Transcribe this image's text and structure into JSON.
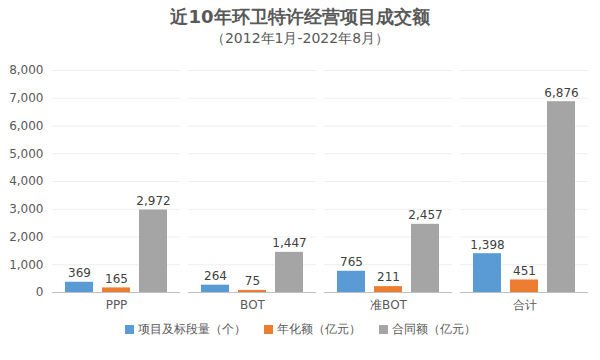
{
  "chart_data": {
    "type": "bar",
    "title": "近10年环卫特许经营项目成交额",
    "subtitle": "（2012年1月-2022年8月）",
    "categories": [
      "PPP",
      "BOT",
      "准BOT",
      "合计"
    ],
    "series": [
      {
        "name": "项目及标段量（个）",
        "color": "#5B9BD5",
        "values": [
          369,
          264,
          765,
          1398
        ],
        "value_labels": [
          "369",
          "264",
          "765",
          "1,398"
        ]
      },
      {
        "name": "年化额（亿元）",
        "color": "#ED7D31",
        "values": [
          165,
          75,
          211,
          451
        ],
        "value_labels": [
          "165",
          "75",
          "211",
          "451"
        ]
      },
      {
        "name": "合同额（亿元）",
        "color": "#A5A5A5",
        "values": [
          2972,
          1447,
          2457,
          6876
        ],
        "value_labels": [
          "2,972",
          "1,447",
          "2,457",
          "6,876"
        ]
      }
    ],
    "ylim": [
      0,
      8000
    ],
    "yticks": [
      0,
      {
        "value": 1000,
        "label": "1,000"
      },
      {
        "value": 2000,
        "label": "2,000"
      },
      {
        "value": 3000,
        "label": "3,000"
      },
      {
        "value": 4000,
        "label": "4,000"
      },
      {
        "value": 5000,
        "label": "5,000"
      },
      {
        "value": 6000,
        "label": "6,000"
      },
      {
        "value": 7000,
        "label": "7,000"
      },
      {
        "value": 8000,
        "label": "8,000"
      }
    ],
    "grid": true,
    "legend": "bottom",
    "data_labels": true
  }
}
